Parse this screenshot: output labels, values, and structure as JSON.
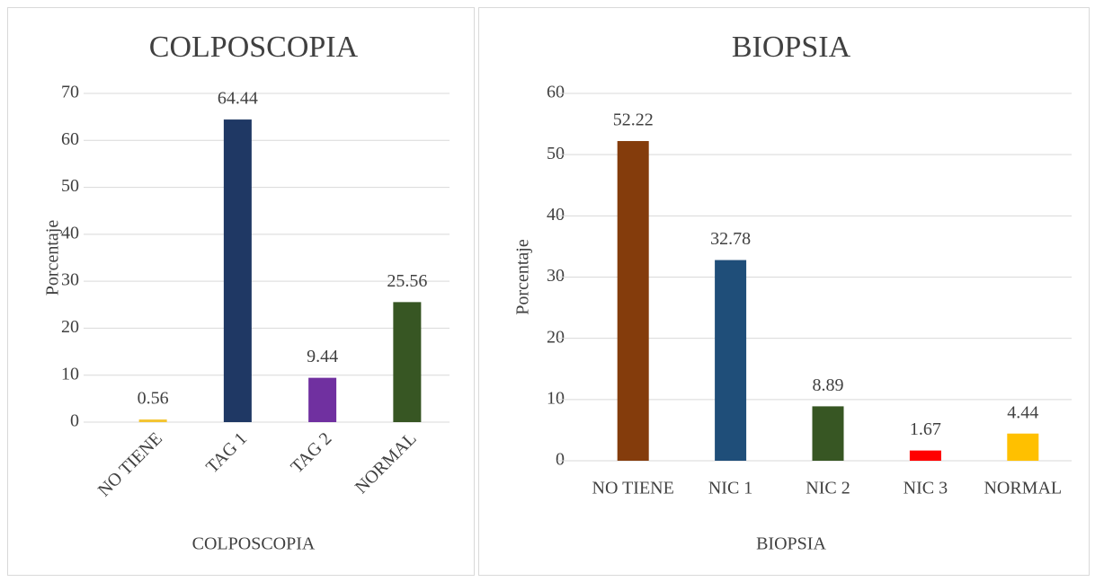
{
  "chart_data": [
    {
      "type": "bar",
      "title": "COLPOSCOPIA",
      "x_label": "COLPOSCOPIA",
      "y_label": "Porcentaje",
      "categories": [
        "NO TIENE",
        "TAG 1",
        "TAG 2",
        "NORMAL"
      ],
      "values": [
        0.56,
        64.44,
        9.44,
        25.56
      ],
      "colors": [
        "#f4c430",
        "#1f3864",
        "#7030a0",
        "#375623"
      ],
      "ylim": [
        0,
        70
      ],
      "yticks": [
        0,
        10,
        20,
        30,
        40,
        50,
        60,
        70
      ],
      "grid": true,
      "x_label_rotation": -45
    },
    {
      "type": "bar",
      "title": "BIOPSIA",
      "x_label": "BIOPSIA",
      "y_label": "Porcentaje",
      "categories": [
        "NO TIENE",
        "NIC 1",
        "NIC 2",
        "NIC 3",
        "NORMAL"
      ],
      "values": [
        52.22,
        32.78,
        8.89,
        1.67,
        4.44
      ],
      "colors": [
        "#843c0c",
        "#1f4e79",
        "#375623",
        "#ff0000",
        "#ffc000"
      ],
      "ylim": [
        0,
        60
      ],
      "yticks": [
        0,
        10,
        20,
        30,
        40,
        50,
        60
      ],
      "grid": true,
      "x_label_rotation": 0
    }
  ]
}
